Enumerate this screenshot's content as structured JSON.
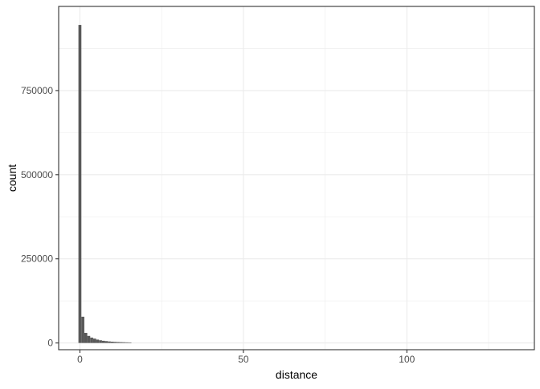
{
  "chart_data": {
    "type": "bar",
    "subtype": "histogram",
    "title": "",
    "xlabel": "distance",
    "ylabel": "count",
    "theme": "bw",
    "grid": true,
    "legend": "none",
    "bar_color": "#595959",
    "xlim": [
      -6.5,
      139
    ],
    "ylim": [
      -20000,
      1000000
    ],
    "x_major_ticks": [
      0,
      50,
      100
    ],
    "x_tick_labels": [
      "0",
      "50",
      "100"
    ],
    "x_minor_ticks": [
      25,
      75,
      125
    ],
    "y_major_ticks": [
      0,
      250000,
      500000,
      750000
    ],
    "y_tick_labels": [
      "0",
      "250000",
      "500000",
      "750000"
    ],
    "y_minor_ticks": [
      125000,
      375000,
      625000,
      875000
    ],
    "bin_width": 0.9,
    "bins": [
      {
        "x": 0.0,
        "count": 945000
      },
      {
        "x": 0.9,
        "count": 78000
      },
      {
        "x": 1.8,
        "count": 30000
      },
      {
        "x": 2.7,
        "count": 21000
      },
      {
        "x": 3.6,
        "count": 16000
      },
      {
        "x": 4.5,
        "count": 13000
      },
      {
        "x": 5.4,
        "count": 10000
      },
      {
        "x": 6.3,
        "count": 8000
      },
      {
        "x": 7.2,
        "count": 6500
      },
      {
        "x": 8.1,
        "count": 5500
      },
      {
        "x": 9.0,
        "count": 4500
      },
      {
        "x": 9.9,
        "count": 3800
      },
      {
        "x": 10.8,
        "count": 3200
      },
      {
        "x": 11.7,
        "count": 2800
      },
      {
        "x": 12.6,
        "count": 2400
      },
      {
        "x": 13.5,
        "count": 2100
      },
      {
        "x": 14.4,
        "count": 1800
      },
      {
        "x": 15.3,
        "count": 1500
      }
    ]
  }
}
